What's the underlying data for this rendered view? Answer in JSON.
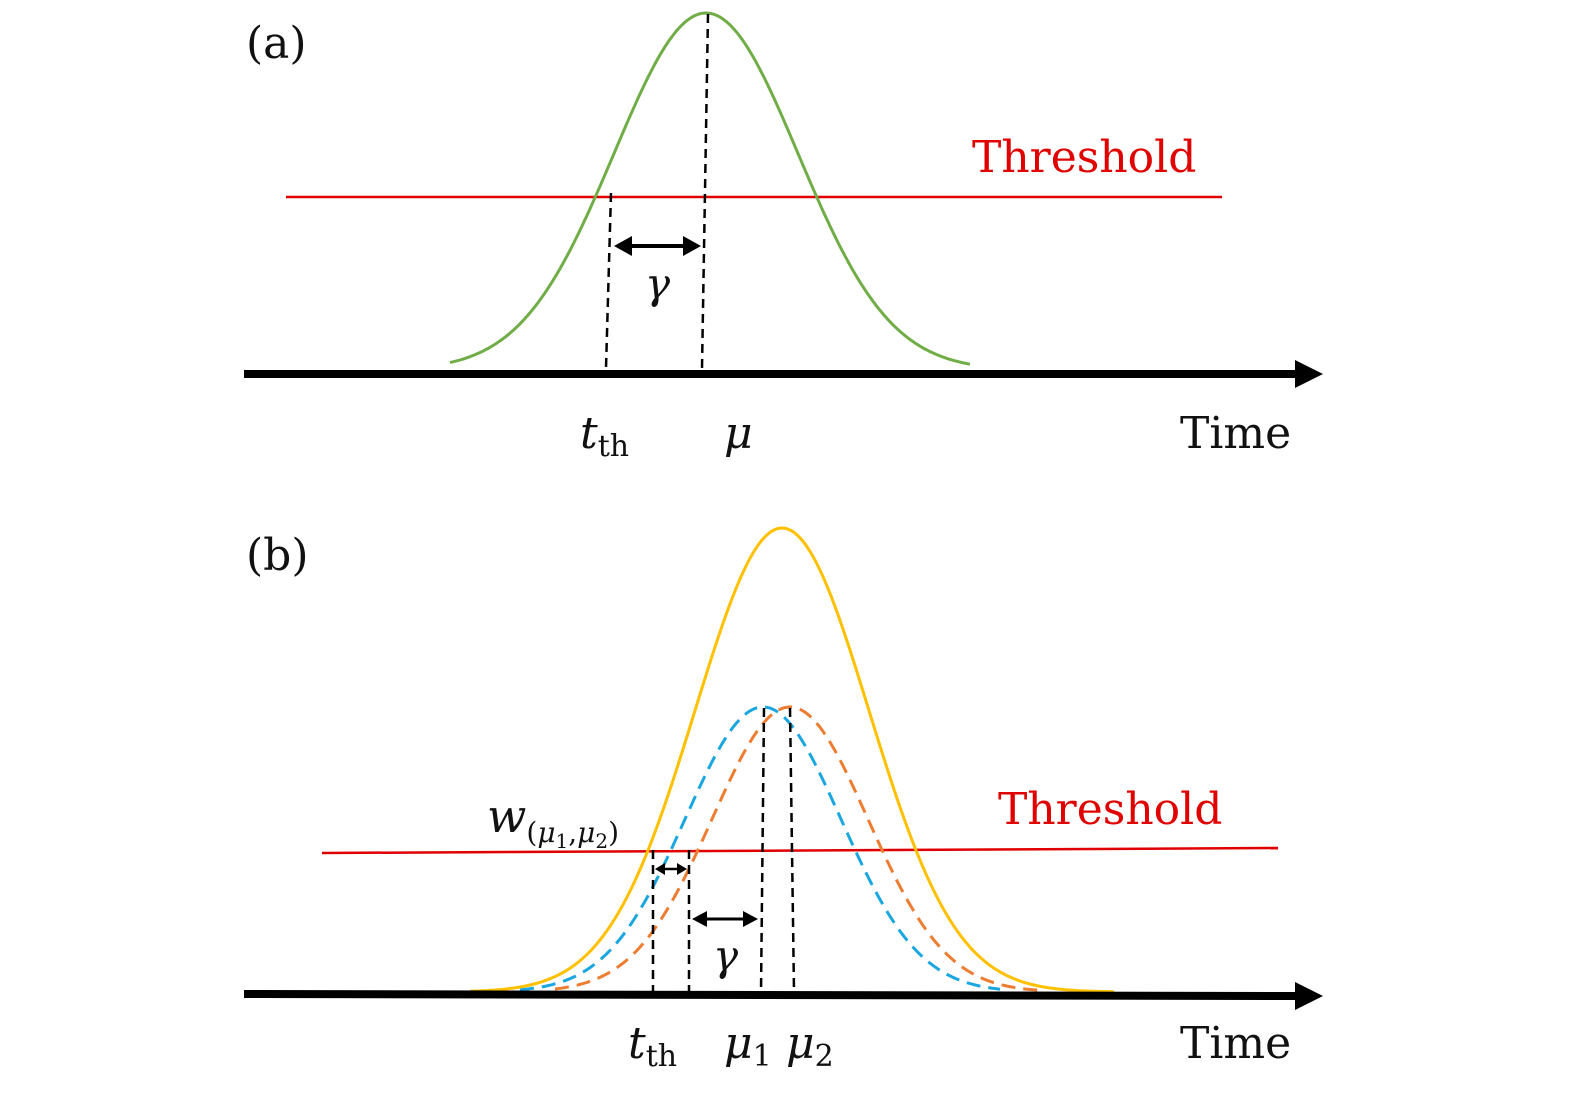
{
  "panel_a": {
    "label": "(a)",
    "threshold_label": "Threshold",
    "gamma_label": "γ",
    "tick_t": "t",
    "tick_t_sub": "th",
    "tick_mu": "μ",
    "axis_label": "Time"
  },
  "panel_b": {
    "label": "(b)",
    "threshold_label": "Threshold",
    "gamma_label": "γ",
    "w_main": "w",
    "w_open": "(",
    "w_mu1": "μ",
    "w_sub1": "1",
    "w_comma": ",",
    "w_mu2": "μ",
    "w_sub2": "2",
    "w_close": ")",
    "tick_t": "t",
    "tick_t_sub": "th",
    "tick_mu1": "μ",
    "tick_mu1_sub": "1",
    "tick_mu2": "μ",
    "tick_mu2_sub": "2",
    "axis_label": "Time"
  },
  "colors": {
    "axis": "#000000",
    "threshold": "#e00000",
    "curve_a": "#70ad47",
    "curve_b_sum": "#ffc000",
    "curve_b_blue": "#1aa7e0",
    "curve_b_orange": "#ed7d31",
    "dashed_marker": "#000000"
  }
}
